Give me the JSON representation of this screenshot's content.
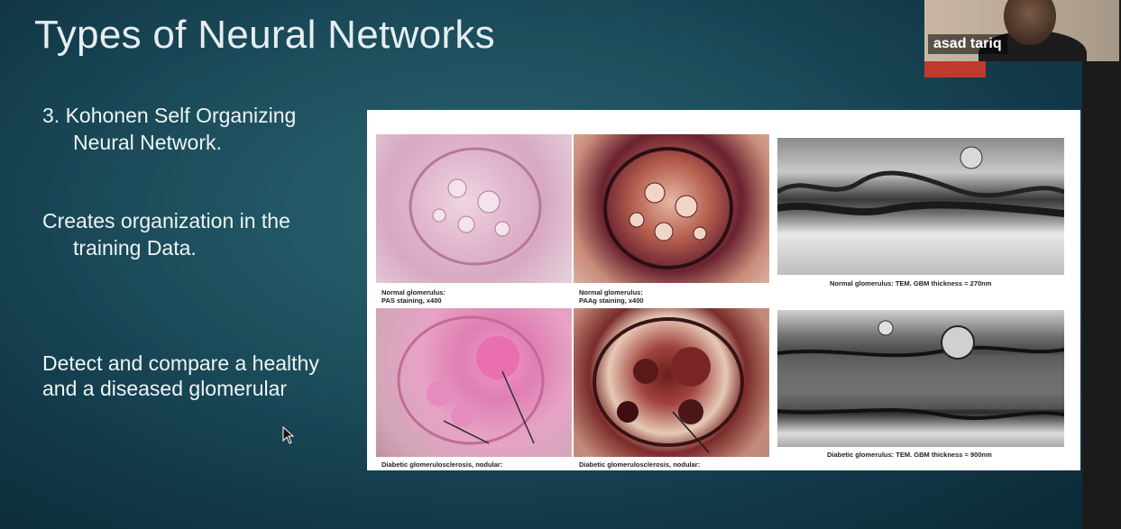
{
  "slide": {
    "title": "Types of Neural Networks",
    "bullets": [
      {
        "line1": "3. Kohonen Self Organizing",
        "line2": "Neural Network."
      },
      {
        "line1": "Creates organization in the",
        "line2": "training Data."
      },
      {
        "line1": "Detect and compare a healthy",
        "line2": "and a diseased glomerular"
      }
    ],
    "figure": {
      "captions": {
        "top_left": {
          "line1": "Normal glomerulus:",
          "line2": "PAS staining, x400"
        },
        "top_middle": {
          "line1": "Normal glomerulus:",
          "line2": "PAAg staining, x400"
        },
        "top_right": "Normal glomerulus: TEM. GBM thickness = 270nm",
        "bottom_left": "Diabetic glomerulosclerosis, nodular:",
        "bottom_middle": "Diabetic glomerulosclerosis, nodular:",
        "bottom_right": "Diabetic glomerulus: TEM. GBM thickness = 900nm"
      }
    }
  },
  "webcam": {
    "participant_name": "asad tariq"
  },
  "colors": {
    "accent": "#c0392b",
    "title_text": "#e6eef0"
  }
}
